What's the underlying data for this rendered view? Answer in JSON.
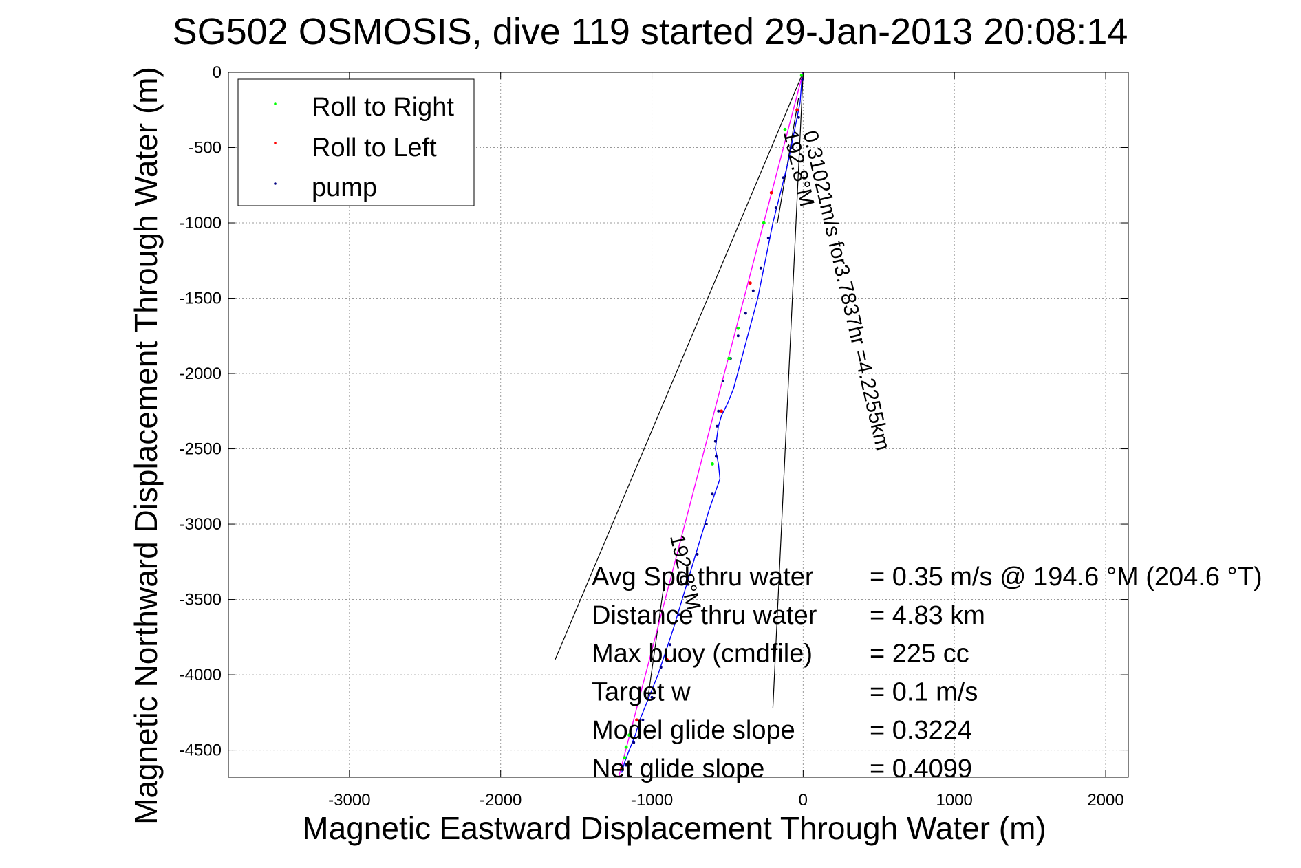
{
  "chart_data": {
    "type": "scatter",
    "title": "SG502 OSMOSIS, dive 119 started 29-Jan-2013 20:08:14",
    "xlabel": "Magnetic Eastward Displacement Through Water (m)",
    "ylabel": "Magnetic Northward Displacement Through Water (m)",
    "xlim": [
      -3800,
      2150
    ],
    "ylim": [
      -4680,
      0
    ],
    "x_ticks": [
      -3000,
      -2000,
      -1000,
      0,
      1000,
      2000
    ],
    "y_ticks": [
      0,
      -500,
      -1000,
      -1500,
      -2000,
      -2500,
      -3000,
      -3500,
      -4000,
      -4500
    ],
    "grid": true,
    "legend_position": "top-left",
    "legend": [
      {
        "label": "Roll to Right",
        "color": "#00ff00"
      },
      {
        "label": "Roll to Left",
        "color": "#ff0000"
      },
      {
        "label": "pump",
        "color": "#000080"
      }
    ],
    "series": [
      {
        "name": "track",
        "color": "#0000ff",
        "x": [
          -5,
          -20,
          -60,
          -100,
          -150,
          -200,
          -240,
          -270,
          -300,
          -340,
          -380,
          -420,
          -460,
          -500,
          -540,
          -560,
          -570,
          -580,
          -560,
          -550,
          -620,
          -680,
          -740,
          -800,
          -860,
          -910,
          -960,
          -1000,
          -1040,
          -1080,
          -1110,
          -1130,
          -1150,
          -1180,
          -1200
        ],
        "y": [
          0,
          -200,
          -400,
          -600,
          -800,
          -1000,
          -1200,
          -1350,
          -1500,
          -1650,
          -1800,
          -1950,
          -2100,
          -2200,
          -2280,
          -2350,
          -2420,
          -2500,
          -2600,
          -2700,
          -2900,
          -3100,
          -3300,
          -3500,
          -3700,
          -3850,
          -4000,
          -4100,
          -4200,
          -4300,
          -4400,
          -4450,
          -4500,
          -4580,
          -4650
        ]
      },
      {
        "name": "net course",
        "color": "#ff00ff",
        "x": [
          0,
          -1220
        ],
        "y": [
          0,
          -4680
        ]
      }
    ],
    "pump_points": {
      "x": [
        -5,
        -30,
        -80,
        -130,
        -180,
        -230,
        -280,
        -330,
        -380,
        -430,
        -480,
        -530,
        -560,
        -570,
        -580,
        -575,
        -600,
        -640,
        -700,
        -760,
        -820,
        -880,
        -940,
        -1000,
        -1060,
        -1120,
        -1170
      ],
      "y": [
        -50,
        -300,
        -500,
        -700,
        -900,
        -1100,
        -1300,
        -1450,
        -1600,
        -1750,
        -1900,
        -2050,
        -2250,
        -2350,
        -2450,
        -2550,
        -2800,
        -3000,
        -3200,
        -3400,
        -3600,
        -3800,
        -3950,
        -4150,
        -4300,
        -4450,
        -4600
      ]
    },
    "roll_right_points": {
      "x": [
        -10,
        -120,
        -260,
        -430,
        -490,
        -600,
        -1150,
        -1170,
        -1180
      ],
      "y": [
        -20,
        -380,
        -1000,
        -1700,
        -1900,
        -2600,
        -4400,
        -4480,
        -4550
      ]
    },
    "roll_left_points": {
      "x": [
        -40,
        -210,
        -350,
        -540,
        -900,
        -1100,
        -1200
      ],
      "y": [
        -250,
        -800,
        -1400,
        -2250,
        -3900,
        -4300,
        -4620
      ]
    },
    "current_lines": [
      {
        "x": [
          0,
          -1640
        ],
        "y": [
          0,
          -3900
        ]
      },
      {
        "x": [
          0,
          -200
        ],
        "y": [
          0,
          -4220
        ]
      },
      {
        "x": [
          -30,
          -170
        ],
        "y": [
          -170,
          -1000
        ]
      },
      {
        "x": [
          -920,
          -1030
        ],
        "y": [
          -3400,
          -4180
        ]
      }
    ],
    "annotations": [
      {
        "text": "0.31021m/s for3.7837hr =4.2255km",
        "x": 0,
        "y": -400,
        "angle": 77
      },
      {
        "text": "192.8°M",
        "x": -130,
        "y": -400,
        "angle": 77
      },
      {
        "text": "192.8°M",
        "x": -880,
        "y": -3080,
        "angle": 77
      }
    ],
    "stats": [
      {
        "label": "Avg Spd thru water",
        "value": "=  0.35 m/s @ 194.6 °M (204.6 °T)"
      },
      {
        "label": "Distance thru water",
        "value": "=  4.83 km"
      },
      {
        "label": "Max buoy (cmdfile)",
        "value": "= 225 cc"
      },
      {
        "label": "Target w",
        "value": "= 0.1 m/s"
      },
      {
        "label": "Model glide slope",
        "value": "= 0.3224"
      },
      {
        "label": "Net glide slope",
        "value": "= 0.4099"
      }
    ]
  }
}
